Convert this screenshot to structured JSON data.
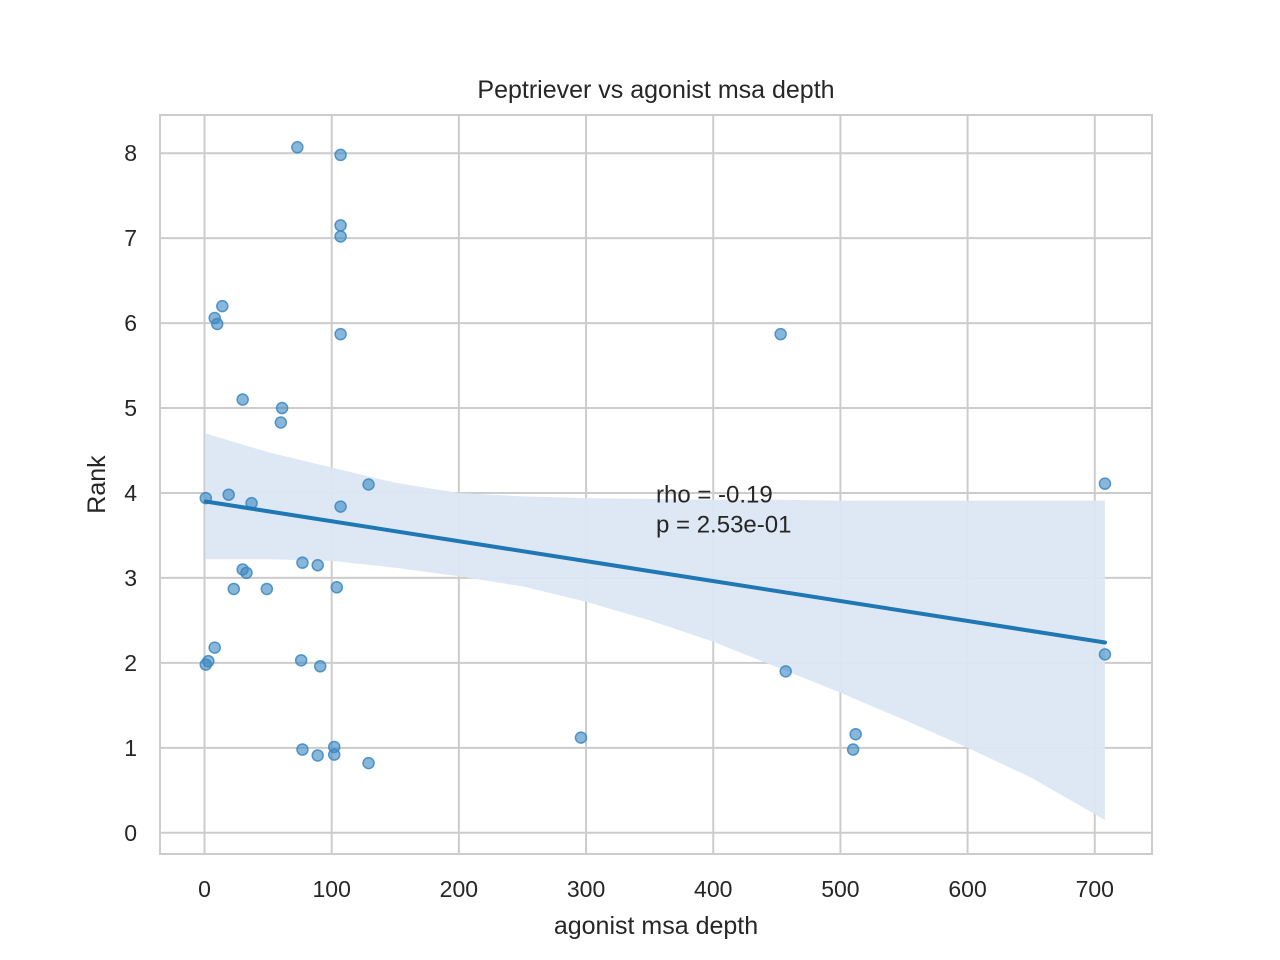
{
  "chart_data": {
    "type": "scatter",
    "title": "Peptriever vs agonist msa depth",
    "xlabel": "agonist msa depth",
    "ylabel": "Rank",
    "xlim": [
      -35,
      745
    ],
    "ylim": [
      -0.25,
      8.45
    ],
    "xticks": [
      0,
      100,
      200,
      300,
      400,
      500,
      600,
      700
    ],
    "yticks": [
      0,
      1,
      2,
      3,
      4,
      5,
      6,
      7,
      8
    ],
    "grid": true,
    "point_color": "#3a87c2",
    "line_color": "#1f77b4",
    "band_color": "#dbe7f3",
    "points": [
      {
        "x": 73,
        "y": 8.07
      },
      {
        "x": 107,
        "y": 7.98
      },
      {
        "x": 107,
        "y": 7.15
      },
      {
        "x": 107,
        "y": 7.02
      },
      {
        "x": 14,
        "y": 6.2
      },
      {
        "x": 8,
        "y": 6.06
      },
      {
        "x": 10,
        "y": 5.99
      },
      {
        "x": 107,
        "y": 5.87
      },
      {
        "x": 453,
        "y": 5.87
      },
      {
        "x": 30,
        "y": 5.1
      },
      {
        "x": 61,
        "y": 5.0
      },
      {
        "x": 60,
        "y": 4.83
      },
      {
        "x": 129,
        "y": 4.1
      },
      {
        "x": 708,
        "y": 4.11
      },
      {
        "x": 1,
        "y": 3.94
      },
      {
        "x": 19,
        "y": 3.98
      },
      {
        "x": 37,
        "y": 3.88
      },
      {
        "x": 107,
        "y": 3.84
      },
      {
        "x": 77,
        "y": 3.18
      },
      {
        "x": 89,
        "y": 3.15
      },
      {
        "x": 30,
        "y": 3.1
      },
      {
        "x": 33,
        "y": 3.06
      },
      {
        "x": 23,
        "y": 2.87
      },
      {
        "x": 49,
        "y": 2.87
      },
      {
        "x": 104,
        "y": 2.89
      },
      {
        "x": 8,
        "y": 2.18
      },
      {
        "x": 76,
        "y": 2.03
      },
      {
        "x": 3,
        "y": 2.02
      },
      {
        "x": 1,
        "y": 1.98
      },
      {
        "x": 91,
        "y": 1.96
      },
      {
        "x": 457,
        "y": 1.9
      },
      {
        "x": 708,
        "y": 2.1
      },
      {
        "x": 296,
        "y": 1.12
      },
      {
        "x": 512,
        "y": 1.16
      },
      {
        "x": 510,
        "y": 0.98
      },
      {
        "x": 77,
        "y": 0.98
      },
      {
        "x": 102,
        "y": 1.01
      },
      {
        "x": 102,
        "y": 0.92
      },
      {
        "x": 89,
        "y": 0.91
      },
      {
        "x": 129,
        "y": 0.82
      }
    ],
    "regression": {
      "x": [
        1,
        708
      ],
      "y": [
        3.9,
        2.24
      ]
    },
    "confidence_band": [
      {
        "x": 1,
        "lo": 3.22,
        "hi": 4.7
      },
      {
        "x": 50,
        "lo": 3.22,
        "hi": 4.48
      },
      {
        "x": 100,
        "lo": 3.2,
        "hi": 4.3
      },
      {
        "x": 150,
        "lo": 3.12,
        "hi": 4.12
      },
      {
        "x": 200,
        "lo": 3.02,
        "hi": 4.0
      },
      {
        "x": 250,
        "lo": 2.9,
        "hi": 3.96
      },
      {
        "x": 300,
        "lo": 2.72,
        "hi": 3.94
      },
      {
        "x": 350,
        "lo": 2.5,
        "hi": 3.93
      },
      {
        "x": 400,
        "lo": 2.25,
        "hi": 3.92
      },
      {
        "x": 450,
        "lo": 1.95,
        "hi": 3.92
      },
      {
        "x": 500,
        "lo": 1.65,
        "hi": 3.91
      },
      {
        "x": 550,
        "lo": 1.33,
        "hi": 3.91
      },
      {
        "x": 600,
        "lo": 1.0,
        "hi": 3.91
      },
      {
        "x": 650,
        "lo": 0.65,
        "hi": 3.91
      },
      {
        "x": 708,
        "lo": 0.15,
        "hi": 3.91
      }
    ],
    "annotation": {
      "lines": [
        "rho = -0.19",
        "p = 2.53e-01"
      ],
      "x": 355,
      "y": 3.98
    }
  }
}
